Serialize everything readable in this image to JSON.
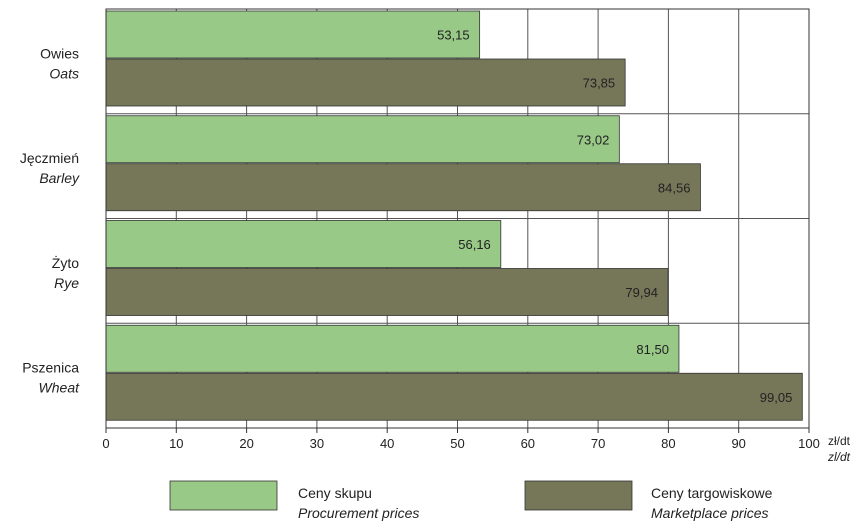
{
  "chart_data": {
    "type": "bar",
    "orientation": "horizontal",
    "categories": [
      {
        "label": "Owies",
        "label_en": "Oats"
      },
      {
        "label": "Jęczmień",
        "label_en": "Barley"
      },
      {
        "label": "Żyto",
        "label_en": "Rye"
      },
      {
        "label": "Pszenica",
        "label_en": "Wheat"
      }
    ],
    "series": [
      {
        "name": "Ceny skupu",
        "name_en": "Procurement prices",
        "color": "#98c987",
        "values": [
          53.15,
          73.02,
          56.16,
          81.5
        ],
        "value_labels": [
          "53,15",
          "73,02",
          "56,16",
          "81,50"
        ]
      },
      {
        "name": "Ceny targowiskowe",
        "name_en": "Marketplace prices",
        "color": "#767759",
        "values": [
          73.85,
          84.56,
          79.94,
          99.05
        ],
        "value_labels": [
          "73,85",
          "84,56",
          "79,94",
          "99,05"
        ]
      }
    ],
    "xlim": [
      0,
      100
    ],
    "xticks": [
      "0",
      "10",
      "20",
      "30",
      "40",
      "50",
      "60",
      "70",
      "80",
      "90",
      "100"
    ],
    "unit_label": "zł/dt",
    "unit_label_en": "zl/dt",
    "grid": true,
    "legend_position": "bottom"
  }
}
